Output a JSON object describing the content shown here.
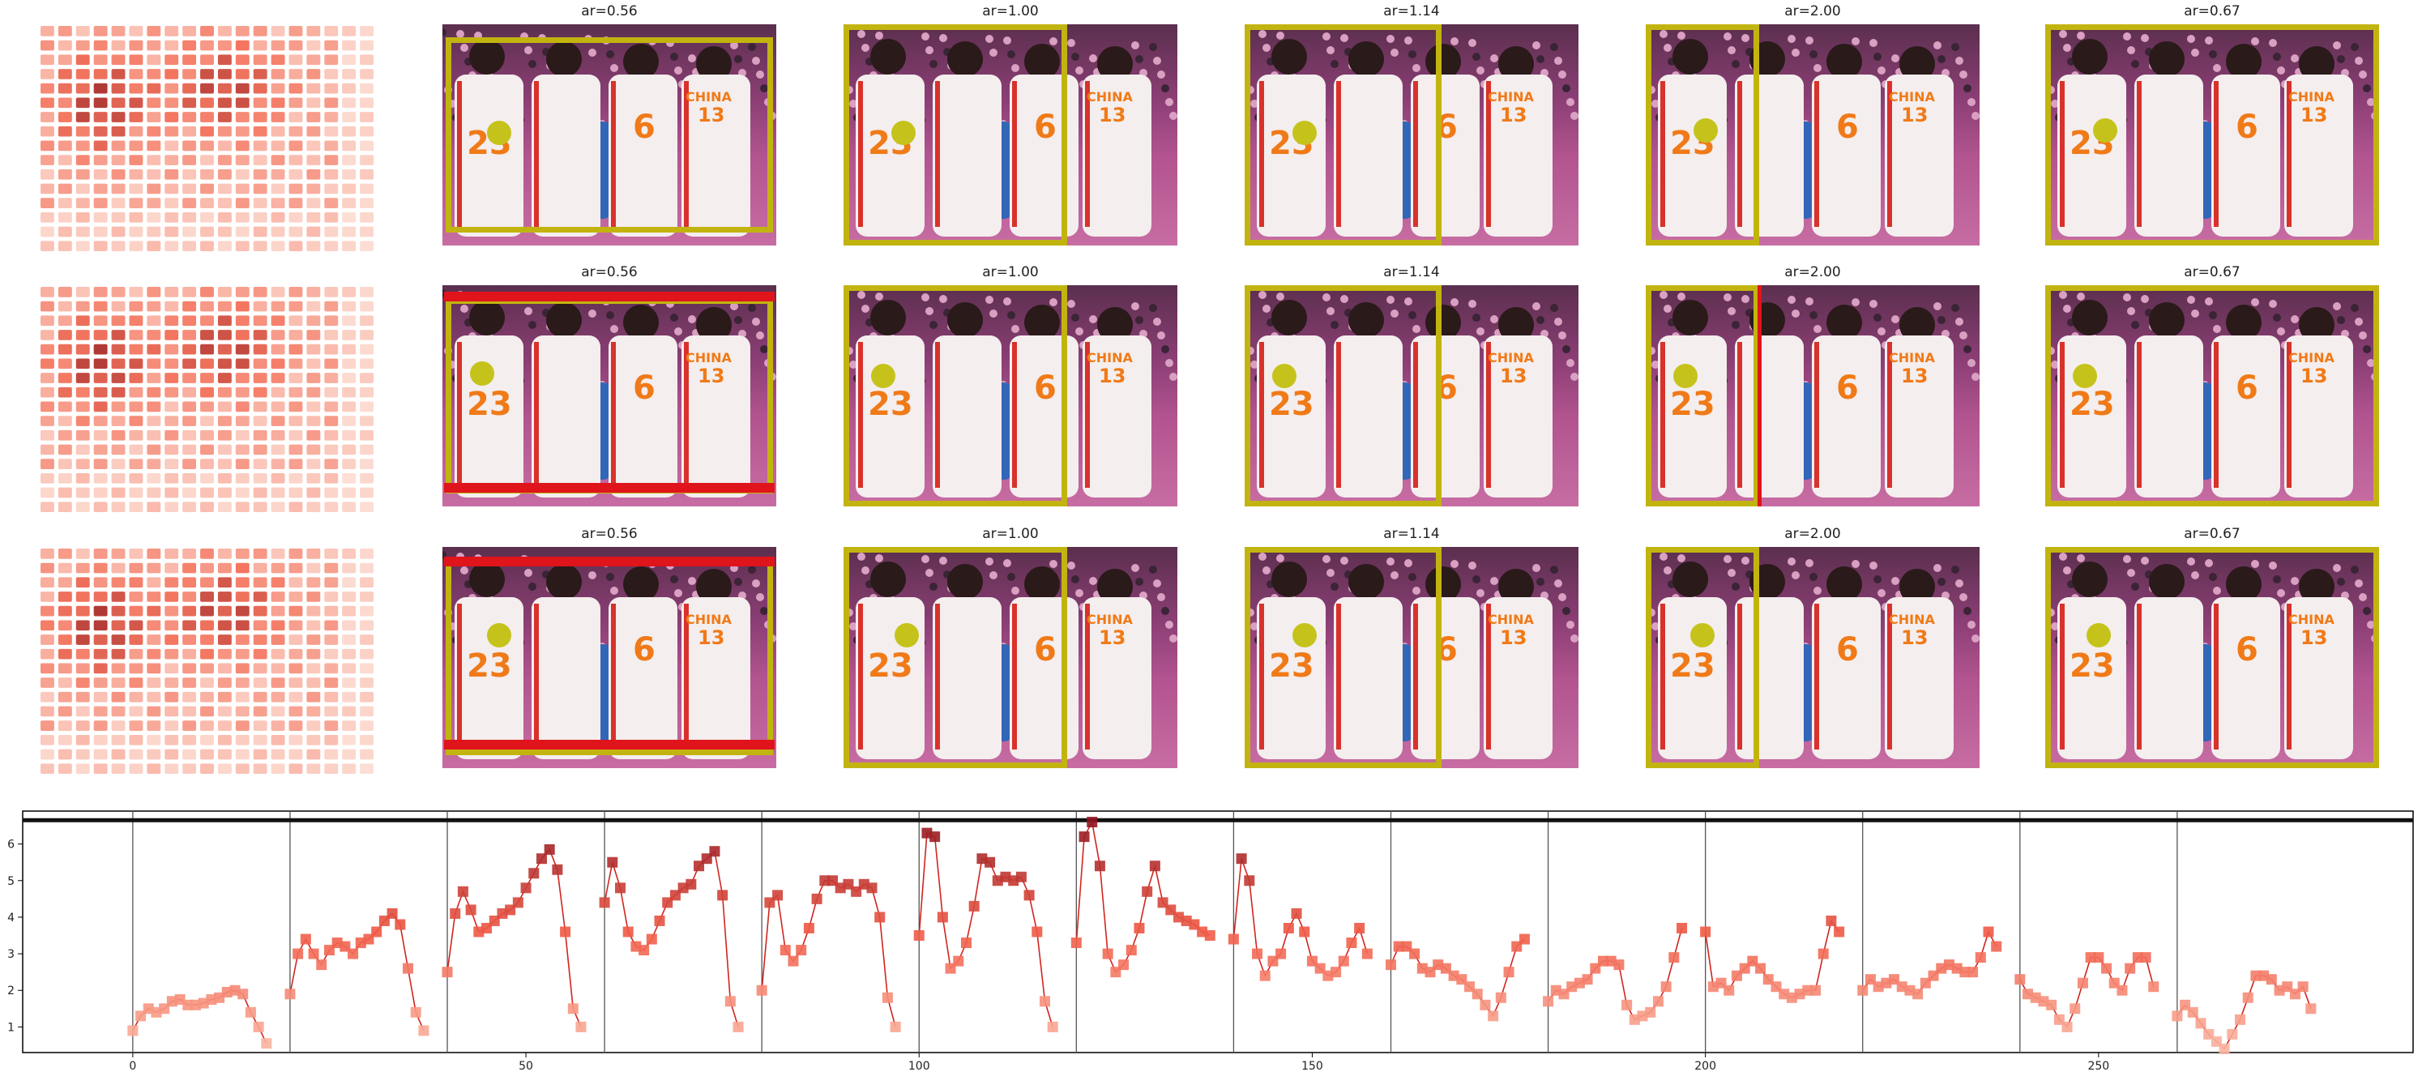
{
  "figure": {
    "rows": [
      {
        "panels": [
          {
            "title": "ar=0.56"
          },
          {
            "title": "ar=1.00"
          },
          {
            "title": "ar=1.14"
          },
          {
            "title": "ar=2.00"
          },
          {
            "title": "ar=0.67"
          }
        ]
      },
      {
        "panels": [
          {
            "title": "ar=0.56"
          },
          {
            "title": "ar=1.00"
          },
          {
            "title": "ar=1.14"
          },
          {
            "title": "ar=2.00"
          },
          {
            "title": "ar=0.67"
          }
        ]
      },
      {
        "panels": [
          {
            "title": "ar=0.56"
          },
          {
            "title": "ar=1.00"
          },
          {
            "title": "ar=1.14"
          },
          {
            "title": "ar=2.00"
          },
          {
            "title": "ar=0.67"
          }
        ]
      }
    ],
    "photo_text": {
      "country": "CHINA",
      "number_a": "23",
      "number_b": "6",
      "number_c": "13"
    }
  },
  "colors": {
    "crop_box": "#c2b410",
    "red_bar": "#e0141b",
    "focus_dot": "#c5c31b",
    "heat_low": "#fde3da",
    "heat_high": "#8e1a1f"
  },
  "chart_data": {
    "type": "line",
    "xlim": [
      -14,
      290
    ],
    "ylim": [
      0.3,
      6.9
    ],
    "xticks": [
      "0",
      "50",
      "100",
      "150",
      "200",
      "250"
    ],
    "xtick_values": [
      0,
      50,
      100,
      150,
      200,
      250
    ],
    "yticks": [
      "1",
      "2",
      "3",
      "4",
      "5",
      "6"
    ],
    "ytick_values": [
      1,
      2,
      3,
      4,
      5,
      6
    ],
    "vlines": [
      0,
      20,
      40,
      60,
      80,
      100,
      120,
      140,
      160,
      180,
      200,
      220,
      240,
      260
    ],
    "hline": 6.65,
    "segments": [
      [
        0.9,
        1.3,
        1.5,
        1.4,
        1.5,
        1.7,
        1.75,
        1.6,
        1.6,
        1.65,
        1.75,
        1.8,
        1.95,
        2.0,
        1.9,
        1.4,
        1.0,
        0.55
      ],
      [
        1.9,
        3.0,
        3.4,
        3.0,
        2.7,
        3.1,
        3.3,
        3.2,
        3.0,
        3.3,
        3.4,
        3.6,
        3.9,
        4.1,
        3.8,
        2.6,
        1.4,
        0.9
      ],
      [
        2.5,
        4.1,
        4.7,
        4.2,
        3.6,
        3.7,
        3.9,
        4.1,
        4.2,
        4.4,
        4.8,
        5.2,
        5.6,
        5.85,
        5.3,
        3.6,
        1.5,
        1.0
      ],
      [
        4.4,
        5.5,
        4.8,
        3.6,
        3.2,
        3.1,
        3.4,
        3.9,
        4.4,
        4.6,
        4.8,
        4.9,
        5.4,
        5.6,
        5.8,
        4.6,
        1.7,
        1.0
      ],
      [
        2.0,
        4.4,
        4.6,
        3.1,
        2.8,
        3.1,
        3.7,
        4.5,
        5.0,
        5.0,
        4.8,
        4.9,
        4.7,
        4.9,
        4.8,
        4.0,
        1.8,
        1.0
      ],
      [
        3.5,
        6.3,
        6.2,
        4.0,
        2.6,
        2.8,
        3.3,
        4.3,
        5.6,
        5.5,
        5.0,
        5.1,
        5.0,
        5.1,
        4.6,
        3.6,
        1.7,
        1.0
      ],
      [
        3.3,
        6.2,
        6.6,
        5.4,
        3.0,
        2.5,
        2.7,
        3.1,
        3.7,
        4.7,
        5.4,
        4.4,
        4.2,
        4.0,
        3.9,
        3.8,
        3.6,
        3.5
      ],
      [
        3.4,
        5.6,
        5.0,
        3.0,
        2.4,
        2.8,
        3.0,
        3.7,
        4.1,
        3.6,
        2.8,
        2.6,
        2.4,
        2.5,
        2.8,
        3.3,
        3.7,
        3.0
      ],
      [
        2.7,
        3.2,
        3.2,
        3.0,
        2.6,
        2.5,
        2.7,
        2.6,
        2.4,
        2.3,
        2.1,
        1.9,
        1.6,
        1.3,
        1.8,
        2.5,
        3.2,
        3.4
      ],
      [
        1.7,
        2.0,
        1.9,
        2.1,
        2.2,
        2.3,
        2.6,
        2.8,
        2.8,
        2.7,
        1.6,
        1.2,
        1.3,
        1.4,
        1.7,
        2.1,
        2.9,
        3.7
      ],
      [
        3.6,
        2.1,
        2.2,
        2.0,
        2.4,
        2.6,
        2.8,
        2.6,
        2.3,
        2.1,
        1.9,
        1.8,
        1.9,
        2.0,
        2.0,
        3.0,
        3.9,
        3.6
      ],
      [
        2.0,
        2.3,
        2.1,
        2.2,
        2.3,
        2.1,
        2.0,
        1.9,
        2.2,
        2.4,
        2.6,
        2.7,
        2.6,
        2.5,
        2.5,
        2.9,
        3.6,
        3.2
      ],
      [
        2.3,
        1.9,
        1.8,
        1.7,
        1.6,
        1.2,
        1.0,
        1.5,
        2.2,
        2.9,
        2.9,
        2.6,
        2.2,
        2.0,
        2.6,
        2.9,
        2.9,
        2.1
      ],
      [
        1.3,
        1.6,
        1.4,
        1.1,
        0.8,
        0.6,
        0.4,
        0.8,
        1.2,
        1.8,
        2.4,
        2.4,
        2.3,
        2.0,
        2.1,
        1.9,
        2.1,
        1.5
      ]
    ]
  }
}
